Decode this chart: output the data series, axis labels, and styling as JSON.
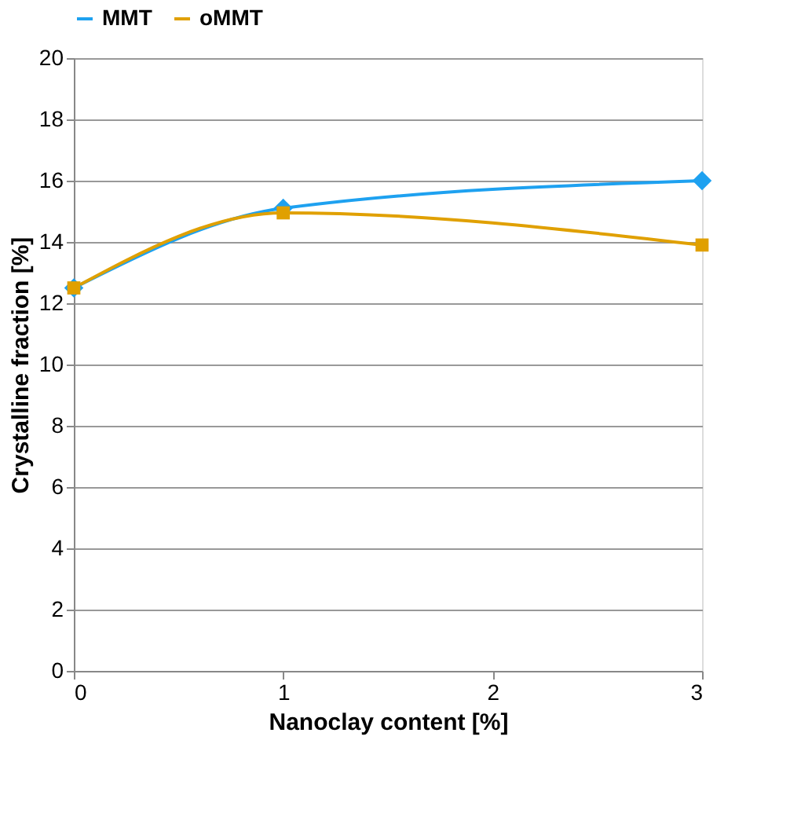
{
  "chart_data": {
    "type": "line",
    "xlabel": "Nanoclay content [%]",
    "ylabel": "Crystalline fraction [%]",
    "x": [
      0,
      1,
      3
    ],
    "series": [
      {
        "name": "MMT",
        "color": "#1ea1f0",
        "marker": "diamond",
        "values": [
          12.5,
          15.1,
          16.0
        ]
      },
      {
        "name": "oMMT",
        "color": "#e0a000",
        "marker": "square",
        "values": [
          12.5,
          14.95,
          13.9
        ]
      }
    ],
    "xlim": [
      0,
      3
    ],
    "xticks": [
      0,
      1,
      2,
      3
    ],
    "ylim": [
      0,
      20
    ],
    "yticks": [
      0,
      2,
      4,
      6,
      8,
      10,
      12,
      14,
      16,
      18,
      20
    ],
    "grid": "y",
    "legend": "top"
  }
}
